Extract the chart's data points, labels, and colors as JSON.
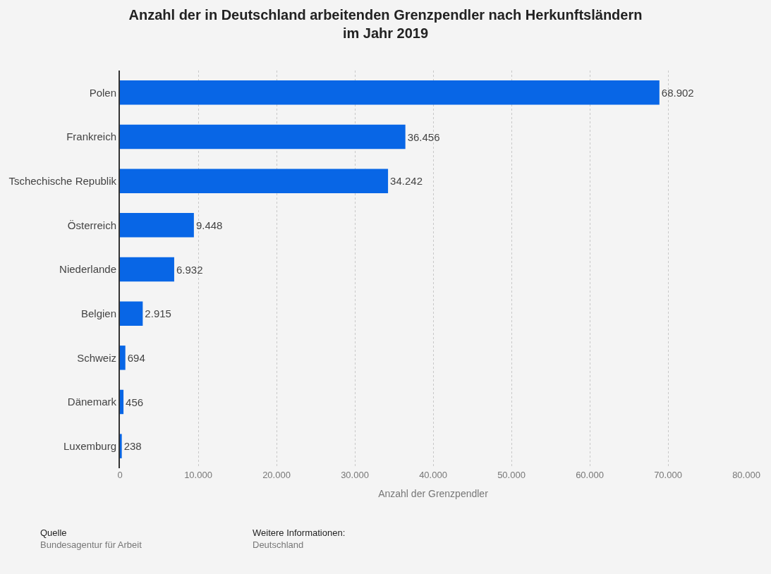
{
  "chart_data": {
    "type": "bar",
    "orientation": "horizontal",
    "title": "Anzahl der in Deutschland arbeitenden Grenzpendler nach Herkunftsländern\nim Jahr 2019",
    "xlabel": "Anzahl der Grenzpendler",
    "categories": [
      "Polen",
      "Frankreich",
      "Tschechische Republik",
      "Österreich",
      "Niederlande",
      "Belgien",
      "Schweiz",
      "Dänemark",
      "Luxemburg"
    ],
    "values": [
      68902,
      36456,
      34242,
      9448,
      6932,
      2915,
      694,
      456,
      238
    ],
    "value_labels": [
      "68.902",
      "36.456",
      "34.242",
      "9.448",
      "6.932",
      "2.915",
      "694",
      "456",
      "238"
    ],
    "color": "#0866e6",
    "xlim": [
      0,
      80000
    ],
    "xticks": [
      0,
      {
        "value": 10000,
        "label": "10.000"
      },
      {
        "value": 20000,
        "label": "20.000"
      },
      {
        "value": 30000,
        "label": "30.000"
      },
      {
        "value": 40000,
        "label": "40.000"
      },
      {
        "value": 50000,
        "label": "50.000"
      },
      {
        "value": 60000,
        "label": "60.000"
      },
      {
        "value": 70000,
        "label": "70.000"
      },
      {
        "value": 80000,
        "label": "80.000"
      }
    ],
    "grid": "x",
    "legend": false,
    "annotations": [
      "Quelle",
      "Bundesagentur für Arbeit",
      "Weitere Informationen:",
      "Deutschland"
    ]
  }
}
